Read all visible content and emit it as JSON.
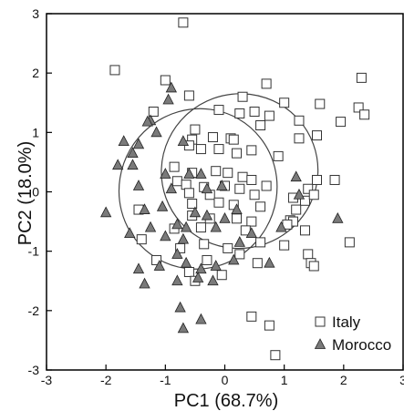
{
  "chart_data": {
    "type": "scatter",
    "xlabel": "PC1 (68.7%)",
    "ylabel": "PC2 (18.0%)",
    "xlim": [
      -3,
      3
    ],
    "ylim": [
      -3,
      3
    ],
    "x_ticks": [
      "-3",
      "-2",
      "-1",
      "0",
      "1",
      "2",
      "3"
    ],
    "y_ticks": [
      "-3",
      "-2",
      "-1",
      "0",
      "1",
      "2",
      "3"
    ],
    "grid": false,
    "legend_position": "bottom-right",
    "series": [
      {
        "name": "Italy",
        "marker": "square",
        "color": "#ffffff",
        "stroke": "#333333",
        "points": [
          [
            -0.7,
            2.85
          ],
          [
            -1.85,
            2.05
          ],
          [
            -1.0,
            1.88
          ],
          [
            -0.6,
            1.62
          ],
          [
            0.3,
            1.6
          ],
          [
            0.7,
            1.82
          ],
          [
            1.0,
            1.5
          ],
          [
            1.6,
            1.48
          ],
          [
            2.3,
            1.92
          ],
          [
            2.25,
            1.42
          ],
          [
            2.35,
            1.3
          ],
          [
            1.95,
            1.18
          ],
          [
            -1.2,
            1.35
          ],
          [
            -0.1,
            1.38
          ],
          [
            0.25,
            1.32
          ],
          [
            0.5,
            1.35
          ],
          [
            0.75,
            1.28
          ],
          [
            1.25,
            1.2
          ],
          [
            -0.5,
            1.05
          ],
          [
            -0.2,
            0.92
          ],
          [
            0.1,
            0.9
          ],
          [
            0.15,
            0.88
          ],
          [
            0.6,
            1.12
          ],
          [
            1.25,
            0.9
          ],
          [
            1.55,
            0.95
          ],
          [
            -0.55,
            0.88
          ],
          [
            -0.6,
            0.78
          ],
          [
            -0.4,
            0.72
          ],
          [
            -0.1,
            0.72
          ],
          [
            0.2,
            0.65
          ],
          [
            0.45,
            0.7
          ],
          [
            0.9,
            0.6
          ],
          [
            -0.85,
            0.42
          ],
          [
            -0.55,
            0.32
          ],
          [
            -0.15,
            0.35
          ],
          [
            0.05,
            0.32
          ],
          [
            0.3,
            0.25
          ],
          [
            0.45,
            0.2
          ],
          [
            -0.8,
            0.18
          ],
          [
            -0.65,
            0.12
          ],
          [
            -0.35,
            0.08
          ],
          [
            0.0,
            0.1
          ],
          [
            0.25,
            0.05
          ],
          [
            0.7,
            0.1
          ],
          [
            1.55,
            0.2
          ],
          [
            1.85,
            0.2
          ],
          [
            1.4,
            0.05
          ],
          [
            -0.6,
            -0.02
          ],
          [
            -0.25,
            -0.05
          ],
          [
            0.5,
            -0.05
          ],
          [
            1.15,
            -0.1
          ],
          [
            1.35,
            -0.15
          ],
          [
            1.5,
            -0.05
          ],
          [
            -0.55,
            -0.2
          ],
          [
            -0.1,
            -0.18
          ],
          [
            0.15,
            -0.22
          ],
          [
            0.6,
            -0.25
          ],
          [
            1.2,
            -0.3
          ],
          [
            -1.45,
            -0.3
          ],
          [
            -0.55,
            -0.4
          ],
          [
            -0.25,
            -0.45
          ],
          [
            0.2,
            -0.45
          ],
          [
            0.45,
            -0.5
          ],
          [
            1.1,
            -0.48
          ],
          [
            1.15,
            -0.5
          ],
          [
            -1.4,
            -0.8
          ],
          [
            -0.85,
            -0.62
          ],
          [
            -0.4,
            -0.6
          ],
          [
            0.35,
            -0.65
          ],
          [
            1.05,
            -0.55
          ],
          [
            1.35,
            -0.65
          ],
          [
            -0.75,
            -0.95
          ],
          [
            -0.35,
            -0.88
          ],
          [
            0.05,
            -0.95
          ],
          [
            0.6,
            -0.85
          ],
          [
            1.0,
            -0.9
          ],
          [
            1.4,
            -1.05
          ],
          [
            2.1,
            -0.85
          ],
          [
            -1.15,
            -1.15
          ],
          [
            -0.3,
            -1.15
          ],
          [
            0.25,
            -1.05
          ],
          [
            0.55,
            -1.2
          ],
          [
            1.45,
            -1.2
          ],
          [
            1.5,
            -1.25
          ],
          [
            -0.6,
            -1.35
          ],
          [
            -0.05,
            -1.4
          ],
          [
            -0.5,
            -1.5
          ],
          [
            0.45,
            -2.1
          ],
          [
            0.75,
            -2.25
          ],
          [
            0.85,
            -2.75
          ]
        ]
      },
      {
        "name": "Morocco",
        "marker": "triangle",
        "color": "#7a7a7a",
        "stroke": "#222222",
        "points": [
          [
            -0.9,
            1.75
          ],
          [
            -0.95,
            1.55
          ],
          [
            -1.25,
            1.2
          ],
          [
            -1.3,
            1.18
          ],
          [
            -1.15,
            1.0
          ],
          [
            -1.7,
            0.85
          ],
          [
            -1.45,
            0.8
          ],
          [
            -0.7,
            0.85
          ],
          [
            -1.55,
            0.65
          ],
          [
            -1.8,
            0.45
          ],
          [
            -1.55,
            0.45
          ],
          [
            -1.0,
            0.3
          ],
          [
            -0.6,
            0.3
          ],
          [
            -0.4,
            0.3
          ],
          [
            -1.45,
            0.1
          ],
          [
            -0.9,
            0.05
          ],
          [
            -0.3,
            0.05
          ],
          [
            -0.05,
            0.1
          ],
          [
            1.2,
            0.25
          ],
          [
            -2.0,
            -0.35
          ],
          [
            -1.35,
            -0.3
          ],
          [
            -1.05,
            -0.25
          ],
          [
            -0.5,
            -0.35
          ],
          [
            -0.3,
            -0.4
          ],
          [
            0.0,
            -0.45
          ],
          [
            0.2,
            -0.3
          ],
          [
            1.25,
            -0.05
          ],
          [
            -1.6,
            -0.7
          ],
          [
            -1.25,
            -0.6
          ],
          [
            -0.8,
            -0.55
          ],
          [
            -0.65,
            -0.6
          ],
          [
            -0.15,
            -0.6
          ],
          [
            0.45,
            -0.7
          ],
          [
            0.95,
            -0.6
          ],
          [
            1.9,
            -0.45
          ],
          [
            -1.0,
            -0.75
          ],
          [
            -0.7,
            -0.8
          ],
          [
            0.25,
            -0.85
          ],
          [
            -1.45,
            -1.3
          ],
          [
            -1.1,
            -1.25
          ],
          [
            -0.8,
            -1.05
          ],
          [
            -0.65,
            -1.2
          ],
          [
            -0.4,
            -1.3
          ],
          [
            -0.15,
            -1.25
          ],
          [
            0.15,
            -1.15
          ],
          [
            0.75,
            -1.2
          ],
          [
            -1.35,
            -1.55
          ],
          [
            -0.8,
            -1.5
          ],
          [
            -0.45,
            -1.45
          ],
          [
            -0.2,
            -1.5
          ],
          [
            -0.75,
            -1.95
          ],
          [
            -0.4,
            -2.15
          ],
          [
            -0.7,
            -2.3
          ]
        ]
      }
    ],
    "ellipses": [
      {
        "series": "Italy",
        "cx": 0.25,
        "cy": 0.35,
        "rx": 1.32,
        "ry": 1.3,
        "angle_deg": -20
      },
      {
        "series": "Morocco",
        "cx": -0.45,
        "cy": 0.05,
        "rx": 1.32,
        "ry": 1.36,
        "angle_deg": 30
      }
    ]
  }
}
